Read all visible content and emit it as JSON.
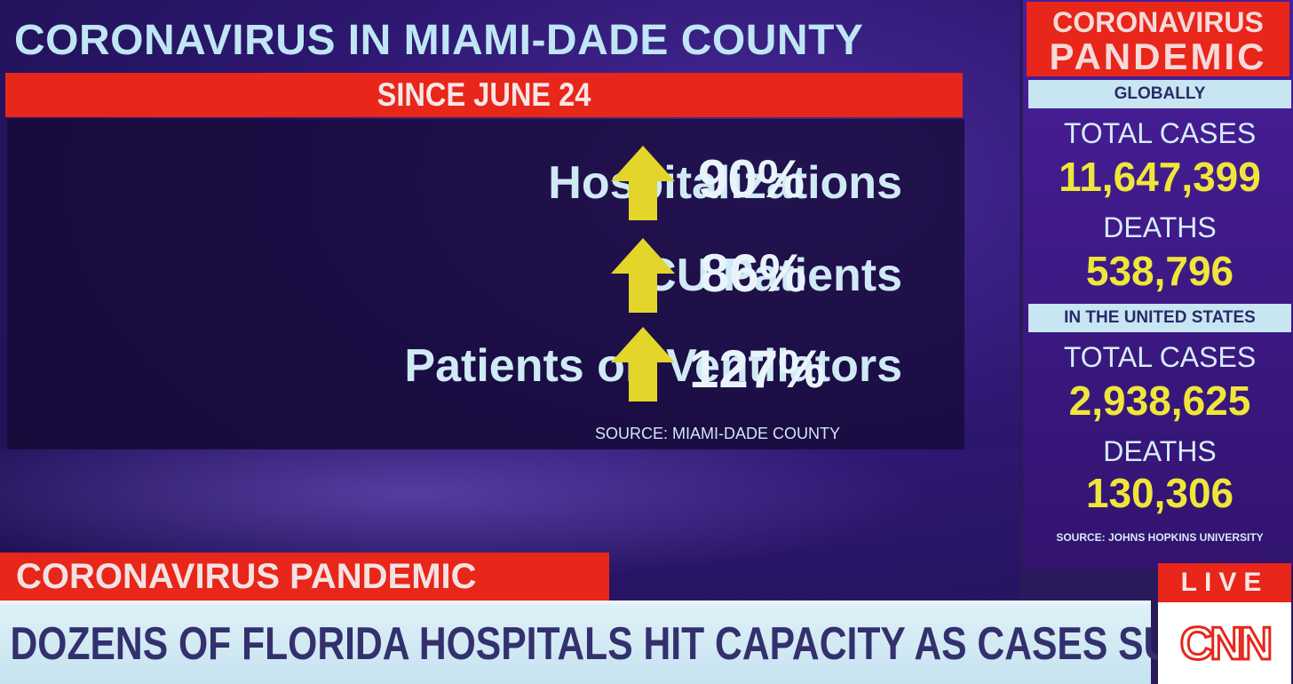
{
  "headline": "CORONAVIRUS IN MIAMI-DADE COUNTY",
  "subhead": "SINCE JUNE 24",
  "stats": [
    {
      "label": "Hospitalizations",
      "value": "90%"
    },
    {
      "label": "ICU Patients",
      "value": "86%"
    },
    {
      "label": "Patients on Ventilators",
      "value": "127%"
    }
  ],
  "stats_source": "SOURCE: MIAMI-DADE COUNTY",
  "sidebar": {
    "title_line1": "CORONAVIRUS",
    "title_line2": "PANDEMIC",
    "global_header": "GLOBALLY",
    "global_cases_label": "TOTAL CASES",
    "global_cases": "11,647,399",
    "global_deaths_label": "DEATHS",
    "global_deaths": "538,796",
    "us_header": "IN THE UNITED STATES",
    "us_cases_label": "TOTAL CASES",
    "us_cases": "2,938,625",
    "us_deaths_label": "DEATHS",
    "us_deaths": "130,306",
    "source": "SOURCE: JOHNS HOPKINS UNIVERSITY"
  },
  "lower_third": {
    "tag": "CORONAVIRUS PANDEMIC",
    "headline": "DOZENS OF FLORIDA HOSPITALS HIT CAPACITY AS CASES SURGE"
  },
  "live_label": "LIVE",
  "logo": {
    "name": "cnn-logo",
    "text": "CNN"
  },
  "colors": {
    "red": "#e8261a",
    "yellow": "#f0e63a",
    "arrow": "#e3d52a"
  }
}
